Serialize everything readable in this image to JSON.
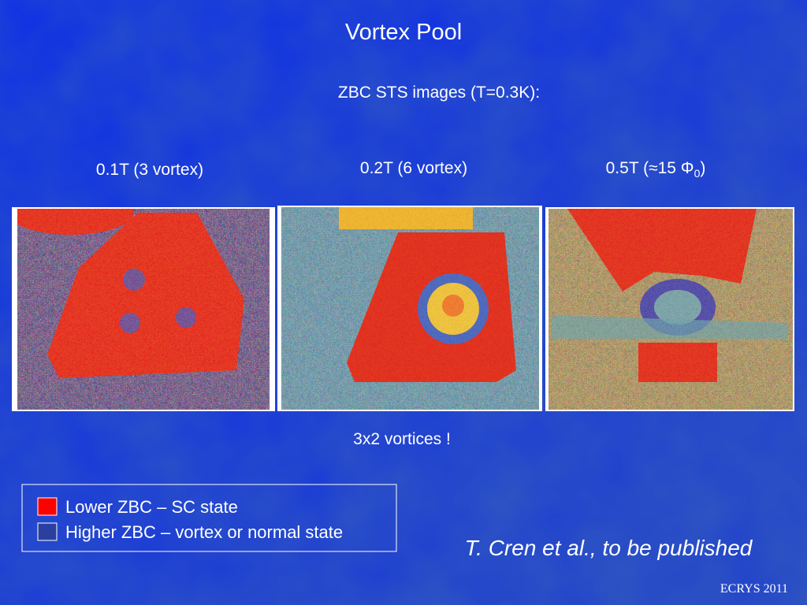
{
  "slide": {
    "title": "Vortex Pool",
    "subtitle": "ZBC STS images (T=0.3K):",
    "panels": [
      {
        "label": "0.1T (3 vortex)"
      },
      {
        "label": "0.2T (6 vortex)"
      },
      {
        "label_parts": {
          "main": "0.5T (≈15 Φ",
          "sub": "0",
          "tail": ")"
        }
      }
    ],
    "caption": "3x2 vortices !",
    "legend": [
      {
        "label": "Lower ZBC – SC state",
        "color": "#ff0000"
      },
      {
        "label": "Higher ZBC – vortex or normal state",
        "color": "#2b3f9e"
      }
    ],
    "citation": "T. Cren et al., to be published",
    "footer": "ECRYS 2011"
  }
}
